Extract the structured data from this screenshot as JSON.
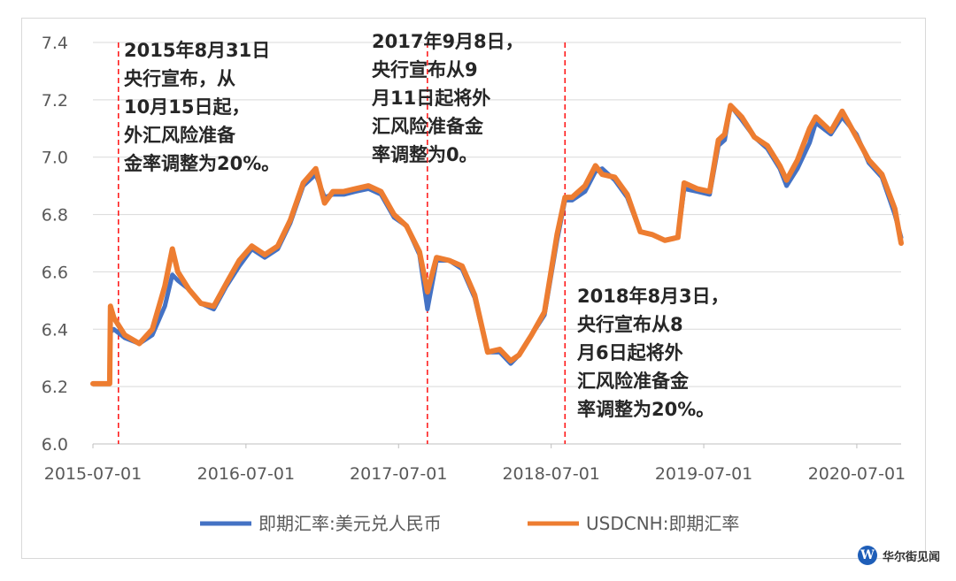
{
  "chart_data": {
    "type": "line",
    "title": "",
    "xlabel": "",
    "ylabel": "",
    "ylim": [
      6.0,
      7.4
    ],
    "yticks": [
      "6.0",
      "6.2",
      "6.4",
      "6.6",
      "6.8",
      "7.0",
      "7.2",
      "7.4"
    ],
    "xticks": [
      "2015-07-01",
      "2016-07-01",
      "2017-07-01",
      "2018-07-01",
      "2019-07-01",
      "2020-07-01"
    ],
    "xrange": [
      "2015-07-01",
      "2020-10-15"
    ],
    "grid": "horizontal",
    "legend_position": "bottom",
    "x": [
      "2015-07-01",
      "2015-08-10",
      "2015-08-12",
      "2015-08-20",
      "2015-09-15",
      "2015-10-20",
      "2015-11-20",
      "2015-12-20",
      "2016-01-07",
      "2016-01-20",
      "2016-02-15",
      "2016-03-15",
      "2016-04-15",
      "2016-05-15",
      "2016-06-15",
      "2016-07-15",
      "2016-08-15",
      "2016-09-15",
      "2016-10-15",
      "2016-11-15",
      "2016-12-15",
      "2017-01-05",
      "2017-01-25",
      "2017-02-20",
      "2017-03-20",
      "2017-04-20",
      "2017-05-20",
      "2017-06-20",
      "2017-07-20",
      "2017-08-20",
      "2017-09-08",
      "2017-09-30",
      "2017-10-30",
      "2017-11-30",
      "2017-12-30",
      "2018-01-30",
      "2018-02-28",
      "2018-03-26",
      "2018-04-15",
      "2018-05-15",
      "2018-06-15",
      "2018-07-15",
      "2018-08-03",
      "2018-08-20",
      "2018-09-20",
      "2018-10-15",
      "2018-10-31",
      "2018-11-30",
      "2018-12-30",
      "2019-01-30",
      "2019-02-28",
      "2019-03-30",
      "2019-04-30",
      "2019-05-15",
      "2019-06-15",
      "2019-07-15",
      "2019-08-05",
      "2019-08-20",
      "2019-09-03",
      "2019-09-30",
      "2019-10-30",
      "2019-11-30",
      "2019-12-30",
      "2020-01-15",
      "2020-02-10",
      "2020-03-10",
      "2020-03-25",
      "2020-04-30",
      "2020-05-27",
      "2020-06-30",
      "2020-07-30",
      "2020-08-30",
      "2020-09-30",
      "2020-10-15"
    ],
    "series": [
      {
        "name": "即期汇率:美元兑人民币",
        "color": "#4472C4",
        "values": [
          6.21,
          6.21,
          6.39,
          6.4,
          6.37,
          6.35,
          6.38,
          6.48,
          6.59,
          6.57,
          6.54,
          6.49,
          6.47,
          6.55,
          6.62,
          6.68,
          6.65,
          6.68,
          6.77,
          6.9,
          6.94,
          6.86,
          6.87,
          6.87,
          6.88,
          6.89,
          6.87,
          6.79,
          6.76,
          6.66,
          6.47,
          6.64,
          6.64,
          6.61,
          6.51,
          6.32,
          6.32,
          6.28,
          6.31,
          6.38,
          6.45,
          6.71,
          6.85,
          6.85,
          6.88,
          6.95,
          6.96,
          6.92,
          6.86,
          6.74,
          6.73,
          6.71,
          6.72,
          6.89,
          6.88,
          6.87,
          7.04,
          7.06,
          7.18,
          7.13,
          7.07,
          7.03,
          6.96,
          6.9,
          6.96,
          7.05,
          7.12,
          7.08,
          7.14,
          7.08,
          6.98,
          6.93,
          6.8,
          6.72
        ]
      },
      {
        "name": "USDCNH:即期汇率",
        "color": "#ED7D31",
        "values": [
          6.21,
          6.21,
          6.48,
          6.44,
          6.38,
          6.35,
          6.4,
          6.55,
          6.68,
          6.6,
          6.54,
          6.49,
          6.48,
          6.56,
          6.64,
          6.69,
          6.66,
          6.69,
          6.78,
          6.91,
          6.96,
          6.84,
          6.88,
          6.88,
          6.89,
          6.9,
          6.88,
          6.8,
          6.76,
          6.67,
          6.53,
          6.65,
          6.64,
          6.62,
          6.52,
          6.32,
          6.33,
          6.29,
          6.31,
          6.38,
          6.46,
          6.73,
          6.86,
          6.86,
          6.9,
          6.97,
          6.94,
          6.93,
          6.87,
          6.74,
          6.73,
          6.71,
          6.72,
          6.91,
          6.89,
          6.88,
          7.06,
          7.08,
          7.18,
          7.14,
          7.07,
          7.04,
          6.97,
          6.92,
          6.99,
          7.1,
          7.14,
          7.09,
          7.16,
          7.07,
          6.99,
          6.94,
          6.82,
          6.7
        ]
      }
    ],
    "event_lines": [
      {
        "date": "2015-08-31",
        "color": "#FF0000"
      },
      {
        "date": "2017-09-08",
        "color": "#FF0000"
      },
      {
        "date": "2018-08-03",
        "color": "#FF0000"
      }
    ],
    "annotations": [
      {
        "lines": [
          "2015年8月31日",
          "央行宣布，从",
          "10月15日起，",
          "外汇风险准备",
          "金率调整为20%。"
        ]
      },
      {
        "lines": [
          "2017年9月8日，",
          "央行宣布从9",
          "月11日起将外",
          "汇风险准备金",
          "率调整为0。"
        ]
      },
      {
        "lines": [
          "2018年8月3日，",
          "央行宣布从8",
          "月6日起将外",
          "汇风险准备金",
          "率调整为20%。"
        ]
      }
    ]
  },
  "watermark": {
    "icon": "W",
    "text": "华尔街见闻",
    "icon_color": "#1E5EB8"
  }
}
